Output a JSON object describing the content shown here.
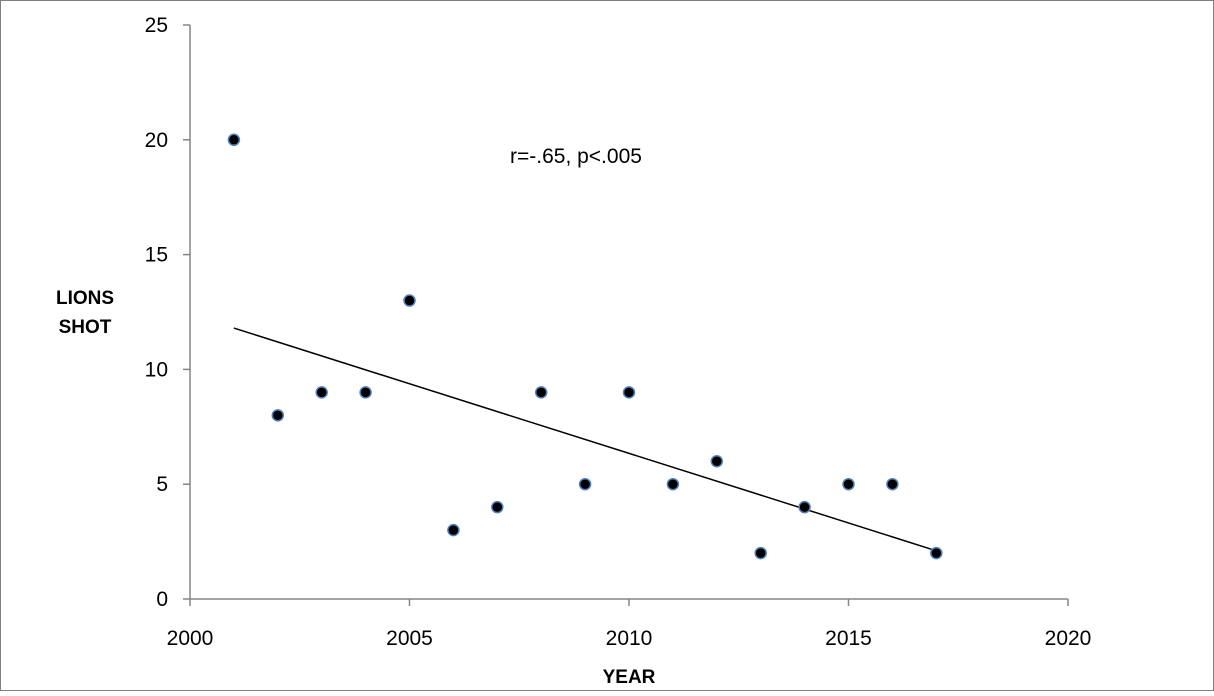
{
  "chart_data": {
    "type": "scatter",
    "title": "",
    "xlabel": "YEAR",
    "ylabel": [
      "LIONS",
      "SHOT"
    ],
    "xlim": [
      2000,
      2020
    ],
    "ylim": [
      0,
      25
    ],
    "xticks": [
      "2000",
      "2005",
      "2010",
      "2015",
      "2020"
    ],
    "yticks": [
      "0",
      "5",
      "10",
      "15",
      "20",
      "25"
    ],
    "grid": false,
    "legend": "none",
    "marker_color": "#000000",
    "marker_edge_color": "#4f81bd",
    "line_color": "#000000",
    "annotation": "r=-.65, p<.005",
    "series": [
      {
        "points": [
          {
            "x": 2001,
            "y": 20
          },
          {
            "x": 2002,
            "y": 8
          },
          {
            "x": 2003,
            "y": 9
          },
          {
            "x": 2004,
            "y": 9
          },
          {
            "x": 2005,
            "y": 13
          },
          {
            "x": 2006,
            "y": 3
          },
          {
            "x": 2007,
            "y": 4
          },
          {
            "x": 2008,
            "y": 9
          },
          {
            "x": 2009,
            "y": 5
          },
          {
            "x": 2010,
            "y": 9
          },
          {
            "x": 2011,
            "y": 5
          },
          {
            "x": 2012,
            "y": 6
          },
          {
            "x": 2013,
            "y": 2
          },
          {
            "x": 2014,
            "y": 4
          },
          {
            "x": 2015,
            "y": 5
          },
          {
            "x": 2016,
            "y": 5
          },
          {
            "x": 2017,
            "y": 2
          }
        ]
      }
    ],
    "trendline": {
      "type": "linear",
      "from": {
        "x": 2001,
        "y": 11.8
      },
      "to": {
        "x": 2017,
        "y": 2.1
      }
    }
  }
}
